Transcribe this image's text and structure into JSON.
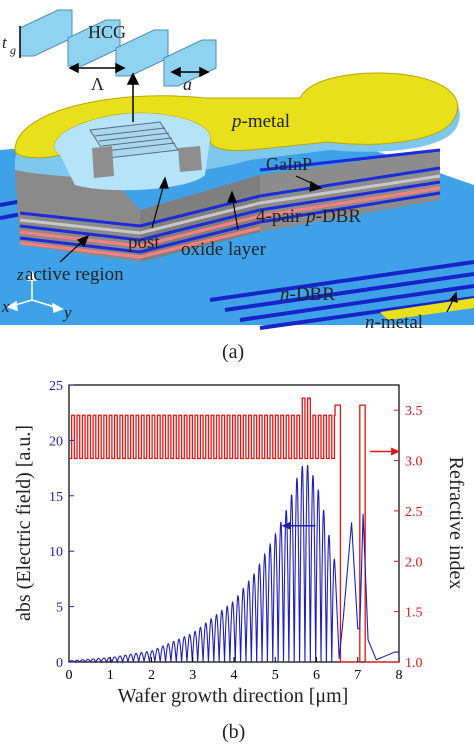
{
  "figure": {
    "panel_a_caption": "(a)",
    "panel_b_caption": "(b)"
  },
  "device": {
    "labels": {
      "hcg": "HCG",
      "tg": "t",
      "tg_sub": "g",
      "period": "Λ",
      "width": "a",
      "p_metal_italic": "p",
      "p_metal_rest": "-metal",
      "gainp": "GaInP",
      "pdbr_pre": "4-pair ",
      "pdbr_italic": "p",
      "pdbr_post": "-DBR",
      "post": "post",
      "oxide_layer": "oxide layer",
      "active_region": "active region",
      "ndbr_italic": "n",
      "ndbr_rest": "-DBR",
      "n_metal_italic": "n",
      "n_metal_rest": "-metal",
      "axis_z": "z",
      "axis_x": "x",
      "axis_y": "y"
    },
    "colors": {
      "hcg": "#8fd3f0",
      "metal": "#e8e01a",
      "gray": "#9a9a9a",
      "dbr_blue": "#1f2bd6",
      "substrate": "#3fa2e8"
    }
  },
  "chart_data": {
    "type": "line",
    "xlabel": "Wafer growth direction [μm]",
    "ylabel_left": "abs (Electric field) [a.u.]",
    "ylabel_right": "Refractive index",
    "xlim": [
      0,
      8
    ],
    "ylim_left": [
      0,
      25
    ],
    "ylim_right": [
      1.0,
      3.75
    ],
    "x_ticks": [
      "0",
      "1",
      "2",
      "3",
      "4",
      "5",
      "6",
      "7",
      "8"
    ],
    "y_ticks_left": [
      "0",
      "5",
      "10",
      "15",
      "20",
      "25"
    ],
    "y_ticks_right": [
      "1.0",
      "1.5",
      "2.0",
      "2.5",
      "3.0",
      "3.5"
    ],
    "series": [
      {
        "axis": "left",
        "color": "#1f1fb4",
        "description": "|E| standing-wave oscillation, envelope rising to a peak near x=5.7",
        "envelope_x": [
          0,
          1,
          2,
          3,
          4,
          4.5,
          5,
          5.3,
          5.6,
          5.75,
          5.9,
          6.1,
          6.3,
          6.45
        ],
        "envelope_y": [
          0.1,
          0.4,
          1.0,
          2.6,
          5.5,
          8.0,
          11.5,
          14.0,
          17.5,
          18.0,
          17.0,
          15.0,
          11.5,
          9.0
        ],
        "oscillation_period_um": 0.13,
        "tail": [
          {
            "x": 6.55,
            "y": 0.3
          },
          {
            "x": 6.65,
            "y": 4.0
          },
          {
            "x": 6.85,
            "y": 12.6
          },
          {
            "x": 7.0,
            "y": 3.0
          },
          {
            "x": 7.05,
            "y": 3.0
          },
          {
            "x": 7.13,
            "y": 13.4
          },
          {
            "x": 7.25,
            "y": 2.0
          },
          {
            "x": 7.45,
            "y": 0.2
          },
          {
            "x": 7.9,
            "y": 0.9
          },
          {
            "x": 8.0,
            "y": 0.9
          }
        ]
      },
      {
        "axis": "right",
        "color": "#e11515",
        "description": "Refractive index profile: DBR alternating ~3.0 / ~3.45, active region ~3.6, air gap 1.0, HCG ~3.55",
        "dbr_range": [
          0,
          6.45
        ],
        "dbr_low": 3.02,
        "dbr_high": 3.45,
        "dbr_period_um": 0.13,
        "active_range": [
          5.6,
          5.85
        ],
        "active_value": 3.62,
        "steps": [
          {
            "x": 6.45,
            "y": 3.55
          },
          {
            "x": 6.58,
            "y": 1.0
          },
          {
            "x": 7.05,
            "y": 3.55
          },
          {
            "x": 7.18,
            "y": 1.0
          },
          {
            "x": 8.0,
            "y": 1.0
          }
        ]
      }
    ],
    "annotations": [
      {
        "text": "left arrow",
        "points_to": "left axis",
        "x": 5.2,
        "y_left": 12.3,
        "color": "#1f1fb4"
      },
      {
        "text": "right arrow",
        "points_to": "right axis",
        "x": 7.3,
        "y_left": 19.0,
        "color": "#e11515"
      }
    ]
  }
}
